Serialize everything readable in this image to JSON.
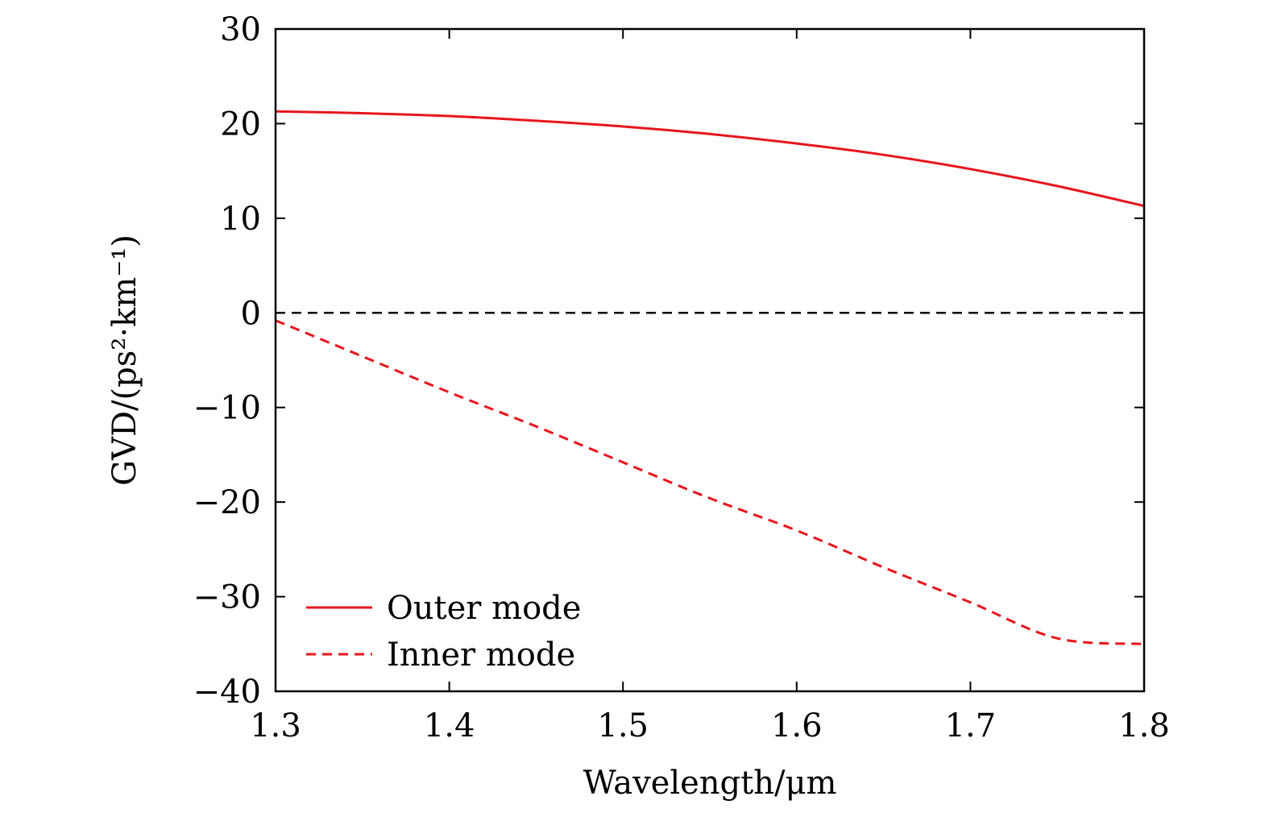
{
  "chart_data": {
    "type": "line",
    "title": "",
    "xlabel": "Wavelength/μm",
    "ylabel": "GVD/(ps²·km⁻¹)",
    "xlim": [
      1.3,
      1.8
    ],
    "ylim": [
      -40,
      30
    ],
    "xticks": [
      1.3,
      1.4,
      1.5,
      1.6,
      1.7,
      1.8
    ],
    "xtick_labels": [
      "1.3",
      "1.4",
      "1.5",
      "1.6",
      "1.7",
      "1.8"
    ],
    "yticks": [
      30,
      20,
      10,
      0,
      -10,
      -20,
      -30,
      -40
    ],
    "ytick_labels": [
      "30",
      "20",
      "10",
      "0",
      "−10",
      "−20",
      "−30",
      "−40"
    ],
    "grid": false,
    "legend_position": "bottom-left",
    "series": [
      {
        "name": "Outer mode",
        "style": "solid",
        "color": "#e8151b",
        "x": [
          1.3,
          1.35,
          1.4,
          1.45,
          1.5,
          1.55,
          1.6,
          1.65,
          1.7,
          1.75,
          1.8
        ],
        "y": [
          21.3,
          21.1,
          20.8,
          20.3,
          19.7,
          18.9,
          17.9,
          16.7,
          15.2,
          13.4,
          11.3
        ]
      },
      {
        "name": "Inner mode",
        "style": "dashed",
        "color": "#e8151b",
        "x": [
          1.3,
          1.35,
          1.4,
          1.45,
          1.5,
          1.55,
          1.6,
          1.65,
          1.7,
          1.75,
          1.8
        ],
        "y": [
          -0.8,
          -4.6,
          -8.4,
          -12.0,
          -15.8,
          -19.6,
          -23.0,
          -26.9,
          -30.6,
          -34.4,
          -35.0
        ]
      }
    ],
    "reference_line": {
      "y": 0,
      "style": "dashed",
      "color": "#000000"
    }
  }
}
